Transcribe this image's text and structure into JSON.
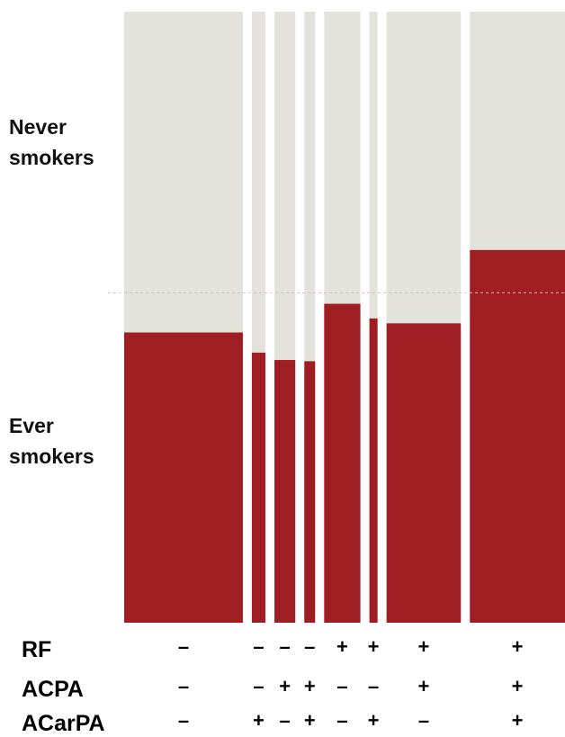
{
  "colors": {
    "ever": "#9e1e23",
    "never": "#e3e3dc",
    "divider": "#c9c9c0",
    "baseline_line": "#e8b8b8"
  },
  "labels": {
    "never": "Never\nsmokers",
    "ever": "Ever\nsmokers"
  },
  "chart_data": {
    "type": "mosaic",
    "title": "",
    "xlabel": "",
    "ylabel": "",
    "ylim": [
      0,
      1
    ],
    "reference_line": 0.54,
    "series": [
      {
        "name": "Never smokers"
      },
      {
        "name": "Ever smokers"
      }
    ],
    "columns": [
      {
        "RF": "-",
        "ACPA": "-",
        "ACarPA": "-",
        "weight": 131,
        "ever_fraction": 0.475
      },
      {
        "RF": "-",
        "ACPA": "-",
        "ACarPA": "+",
        "weight": 15,
        "ever_fraction": 0.442
      },
      {
        "RF": "-",
        "ACPA": "+",
        "ACarPA": "-",
        "weight": 23,
        "ever_fraction": 0.43
      },
      {
        "RF": "-",
        "ACPA": "+",
        "ACarPA": "+",
        "weight": 12,
        "ever_fraction": 0.428
      },
      {
        "RF": "+",
        "ACPA": "-",
        "ACarPA": "-",
        "weight": 40,
        "ever_fraction": 0.522
      },
      {
        "RF": "+",
        "ACPA": "-",
        "ACarPA": "+",
        "weight": 9,
        "ever_fraction": 0.498
      },
      {
        "RF": "+",
        "ACPA": "+",
        "ACarPA": "-",
        "weight": 82,
        "ever_fraction": 0.49
      },
      {
        "RF": "+",
        "ACPA": "+",
        "ACarPA": "+",
        "weight": 105,
        "ever_fraction": 0.61
      }
    ],
    "rows": [
      {
        "key": "RF",
        "label": "RF"
      },
      {
        "key": "ACPA",
        "label": "ACPA"
      },
      {
        "key": "ACarPA",
        "label": "ACarPA"
      }
    ]
  }
}
